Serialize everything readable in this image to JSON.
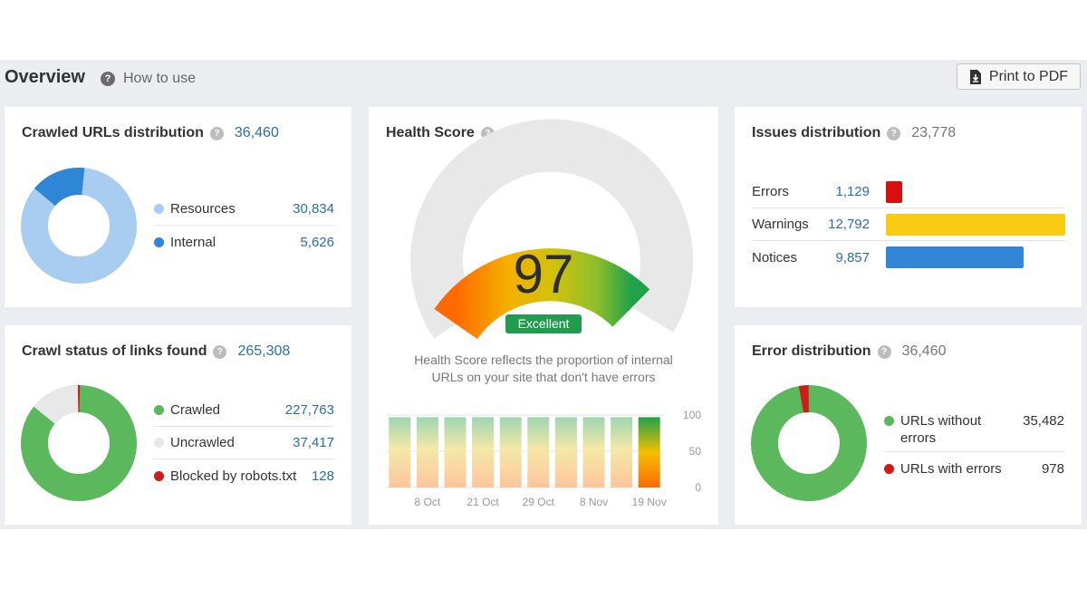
{
  "header": {
    "title": "Overview",
    "help_badge": "?",
    "how_to_use": "How to use",
    "print_label": "Print to PDF"
  },
  "crawled_urls": {
    "title": "Crawled URLs distribution",
    "total": "36,460",
    "items": [
      {
        "label": "Resources",
        "value": "30,834",
        "color": "#a9cdf0"
      },
      {
        "label": "Internal",
        "value": "5,626",
        "color": "#2f86d6"
      }
    ]
  },
  "crawl_status": {
    "title": "Crawl status of links found",
    "total": "265,308",
    "items": [
      {
        "label": "Crawled",
        "value": "227,763",
        "color": "#5cb85c"
      },
      {
        "label": "Uncrawled",
        "value": "37,417",
        "color": "#e8e8e8"
      },
      {
        "label": "Blocked by robots.txt",
        "value": "128",
        "color": "#d11a1a"
      }
    ]
  },
  "health_score": {
    "title": "Health Score",
    "score": "97",
    "rating": "Excellent",
    "description_line1": "Health Score reflects the proportion of internal",
    "description_line2": "URLs on your site that don't have errors"
  },
  "issues": {
    "title": "Issues distribution",
    "total": "23,778",
    "items": [
      {
        "label": "Errors",
        "value": "1,129",
        "color": "#d60f0f",
        "fraction": 0.089
      },
      {
        "label": "Warnings",
        "value": "12,792",
        "color": "#f8cc14",
        "fraction": 1.0
      },
      {
        "label": "Notices",
        "value": "9,857",
        "color": "#3385d6",
        "fraction": 0.77
      }
    ]
  },
  "error_distribution": {
    "title": "Error distribution",
    "total": "36,460",
    "items": [
      {
        "label_line1": "URLs without",
        "label_line2": "errors",
        "value": "35,482",
        "color": "#5cb85c"
      },
      {
        "label_line1": "URLs with errors",
        "label_line2": "",
        "value": "978",
        "color": "#d11a1a"
      }
    ]
  },
  "chart_data": {
    "type": "bar",
    "categories": [
      "",
      "8 Oct",
      "",
      "21 Oct",
      "",
      "29 Oct",
      "",
      "8 Nov",
      "",
      "19 Nov"
    ],
    "values": [
      97,
      97,
      97,
      97,
      97,
      97,
      97,
      97,
      97,
      97
    ],
    "ylim": [
      0,
      100
    ],
    "yticks": [
      "100",
      "50",
      "0"
    ],
    "grid": true
  }
}
